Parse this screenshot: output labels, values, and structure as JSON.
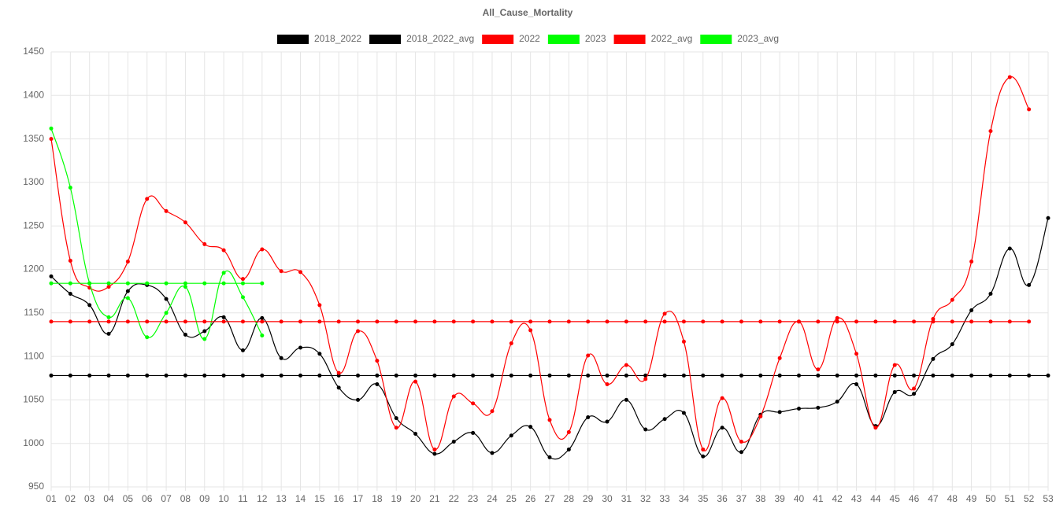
{
  "chart_data": {
    "type": "line",
    "title": "All_Cause_Mortality",
    "categories": [
      "01",
      "02",
      "03",
      "04",
      "05",
      "06",
      "07",
      "08",
      "09",
      "10",
      "11",
      "12",
      "13",
      "14",
      "15",
      "16",
      "17",
      "18",
      "19",
      "20",
      "21",
      "22",
      "23",
      "24",
      "25",
      "26",
      "27",
      "28",
      "29",
      "30",
      "31",
      "32",
      "33",
      "34",
      "35",
      "36",
      "37",
      "38",
      "39",
      "40",
      "41",
      "42",
      "43",
      "44",
      "45",
      "46",
      "47",
      "48",
      "49",
      "50",
      "51",
      "52",
      "53"
    ],
    "ylim": [
      950,
      1450
    ],
    "yticks": [
      950,
      1000,
      1050,
      1100,
      1150,
      1200,
      1250,
      1300,
      1350,
      1400,
      1450
    ],
    "grid": true,
    "legend": "top",
    "series": [
      {
        "name": "2018_2022",
        "color": "#000000",
        "values": [
          1192,
          1172,
          1159,
          1126,
          1175,
          1182,
          1166,
          1125,
          1129,
          1145,
          1107,
          1144,
          1098,
          1110,
          1103,
          1064,
          1050,
          1068,
          1029,
          1011,
          988,
          1002,
          1012,
          989,
          1009,
          1019,
          984,
          993,
          1030,
          1025,
          1050,
          1016,
          1028,
          1035,
          985,
          1018,
          990,
          1033,
          1036,
          1040,
          1041,
          1048,
          1068,
          1020,
          1059,
          1057,
          1097,
          1114,
          1153,
          1172,
          1224,
          1182,
          1259
        ]
      },
      {
        "name": "2018_2022_avg",
        "color": "#000000",
        "values": [
          1078,
          1078,
          1078,
          1078,
          1078,
          1078,
          1078,
          1078,
          1078,
          1078,
          1078,
          1078,
          1078,
          1078,
          1078,
          1078,
          1078,
          1078,
          1078,
          1078,
          1078,
          1078,
          1078,
          1078,
          1078,
          1078,
          1078,
          1078,
          1078,
          1078,
          1078,
          1078,
          1078,
          1078,
          1078,
          1078,
          1078,
          1078,
          1078,
          1078,
          1078,
          1078,
          1078,
          1078,
          1078,
          1078,
          1078,
          1078,
          1078,
          1078,
          1078,
          1078,
          1078
        ]
      },
      {
        "name": "2022",
        "color": "#ff0000",
        "values": [
          1350,
          1210,
          1179,
          1180,
          1209,
          1281,
          1267,
          1254,
          1229,
          1222,
          1189,
          1223,
          1198,
          1197,
          1159,
          1081,
          1129,
          1095,
          1018,
          1071,
          993,
          1054,
          1046,
          1037,
          1115,
          1130,
          1027,
          1013,
          1101,
          1068,
          1090,
          1074,
          1149,
          1117,
          993,
          1052,
          1002,
          1031,
          1098,
          1140,
          1085,
          1144,
          1103,
          1018,
          1090,
          1063,
          1143,
          1165,
          1209,
          1359,
          1421,
          1384,
          null
        ]
      },
      {
        "name": "2023",
        "color": "#00ff00",
        "values": [
          1362,
          1294,
          1184,
          1145,
          1167,
          1122,
          1150,
          1180,
          1120,
          1196,
          1168,
          1124,
          null,
          null,
          null,
          null,
          null,
          null,
          null,
          null,
          null,
          null,
          null,
          null,
          null,
          null,
          null,
          null,
          null,
          null,
          null,
          null,
          null,
          null,
          null,
          null,
          null,
          null,
          null,
          null,
          null,
          null,
          null,
          null,
          null,
          null,
          null,
          null,
          null,
          null,
          null,
          null,
          null
        ]
      },
      {
        "name": "2022_avg",
        "color": "#ff0000",
        "values": [
          1140,
          1140,
          1140,
          1140,
          1140,
          1140,
          1140,
          1140,
          1140,
          1140,
          1140,
          1140,
          1140,
          1140,
          1140,
          1140,
          1140,
          1140,
          1140,
          1140,
          1140,
          1140,
          1140,
          1140,
          1140,
          1140,
          1140,
          1140,
          1140,
          1140,
          1140,
          1140,
          1140,
          1140,
          1140,
          1140,
          1140,
          1140,
          1140,
          1140,
          1140,
          1140,
          1140,
          1140,
          1140,
          1140,
          1140,
          1140,
          1140,
          1140,
          1140,
          1140,
          null
        ]
      },
      {
        "name": "2023_avg",
        "color": "#00ff00",
        "values": [
          1184,
          1184,
          1184,
          1184,
          1184,
          1184,
          1184,
          1184,
          1184,
          1184,
          1184,
          1184,
          null,
          null,
          null,
          null,
          null,
          null,
          null,
          null,
          null,
          null,
          null,
          null,
          null,
          null,
          null,
          null,
          null,
          null,
          null,
          null,
          null,
          null,
          null,
          null,
          null,
          null,
          null,
          null,
          null,
          null,
          null,
          null,
          null,
          null,
          null,
          null,
          null,
          null,
          null,
          null,
          null
        ]
      }
    ]
  }
}
